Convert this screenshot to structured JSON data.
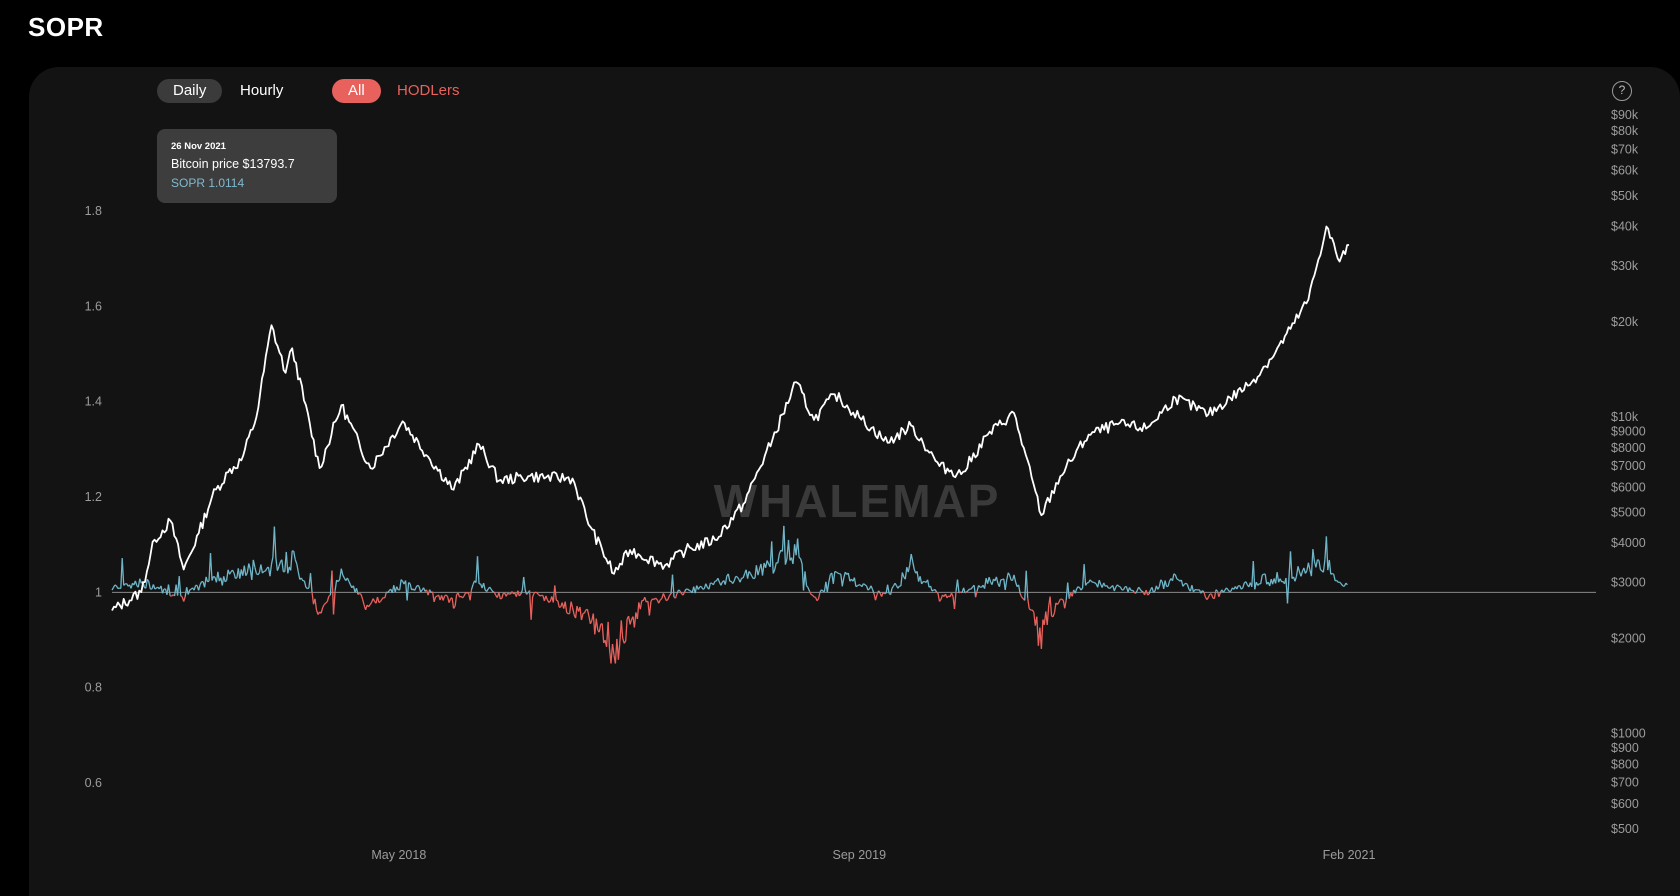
{
  "page": {
    "title": "SOPR"
  },
  "controls": {
    "interval": [
      {
        "label": "Daily",
        "active": true
      },
      {
        "label": "Hourly",
        "active": false
      }
    ],
    "cohort": [
      {
        "label": "All",
        "active": true
      },
      {
        "label": "HODLers",
        "active": false
      }
    ],
    "help_label": "?"
  },
  "tooltip": {
    "date": "26 Nov 2021",
    "price_label": "Bitcoin price $13793.7",
    "sopr_label": "SOPR 1.0114"
  },
  "watermark": "WHALEMAP",
  "colors": {
    "background": "#131313",
    "price_line": "#ffffff",
    "sopr_above": "#6fb6c9",
    "sopr_below": "#e8615c",
    "baseline": "#8a8a8a",
    "accent": "#e8615c"
  },
  "chart_data": {
    "type": "line",
    "title": "SOPR",
    "x_ticks": [
      "May 2018",
      "Sep 2019",
      "Feb 2021"
    ],
    "y_left": {
      "label": "",
      "ticks": [
        "1.8",
        "1.6",
        "1.4",
        "1.2",
        "1",
        "0.8",
        "0.6"
      ],
      "ylim": [
        0.55,
        1.85
      ],
      "baseline": 1
    },
    "y_right": {
      "label": "",
      "scale": "log",
      "ticks": [
        {
          "label": "$90k",
          "value": 90000
        },
        {
          "label": "$80k",
          "value": 80000
        },
        {
          "label": "$70k",
          "value": 70000
        },
        {
          "label": "$60k",
          "value": 60000
        },
        {
          "label": "$50k",
          "value": 50000
        },
        {
          "label": "$40k",
          "value": 40000
        },
        {
          "label": "$30k",
          "value": 30000
        },
        {
          "label": "$20k",
          "value": 20000
        },
        {
          "label": "$10k",
          "value": 10000
        },
        {
          "label": "$9000",
          "value": 9000
        },
        {
          "label": "$8000",
          "value": 8000
        },
        {
          "label": "$7000",
          "value": 7000
        },
        {
          "label": "$6000",
          "value": 6000
        },
        {
          "label": "$5000",
          "value": 5000
        },
        {
          "label": "$4000",
          "value": 4000
        },
        {
          "label": "$3000",
          "value": 3000
        },
        {
          "label": "$2000",
          "value": 2000
        },
        {
          "label": "$1000",
          "value": 1000
        },
        {
          "label": "$900",
          "value": 900
        },
        {
          "label": "$800",
          "value": 800
        },
        {
          "label": "$700",
          "value": 700
        },
        {
          "label": "$600",
          "value": 600
        },
        {
          "label": "$500",
          "value": 500
        }
      ]
    },
    "series": [
      {
        "name": "Bitcoin price",
        "axis": "right",
        "points": [
          [
            "2017-07-01",
            2450
          ],
          [
            "2017-08-01",
            2800
          ],
          [
            "2017-08-15",
            4100
          ],
          [
            "2017-09-01",
            4700
          ],
          [
            "2017-09-15",
            3300
          ],
          [
            "2017-10-01",
            4300
          ],
          [
            "2017-10-15",
            5600
          ],
          [
            "2017-11-01",
            6700
          ],
          [
            "2017-11-15",
            7300
          ],
          [
            "2017-12-01",
            10000
          ],
          [
            "2017-12-17",
            19500
          ],
          [
            "2018-01-01",
            13800
          ],
          [
            "2018-01-08",
            16500
          ],
          [
            "2018-02-06",
            6900
          ],
          [
            "2018-03-01",
            10900
          ],
          [
            "2018-04-01",
            6900
          ],
          [
            "2018-05-05",
            9700
          ],
          [
            "2018-06-01",
            7500
          ],
          [
            "2018-06-28",
            5900
          ],
          [
            "2018-07-25",
            8200
          ],
          [
            "2018-08-15",
            6300
          ],
          [
            "2018-09-15",
            6500
          ],
          [
            "2018-11-01",
            6400
          ],
          [
            "2018-11-20",
            4500
          ],
          [
            "2018-12-15",
            3200
          ],
          [
            "2019-01-01",
            3800
          ],
          [
            "2019-02-07",
            3400
          ],
          [
            "2019-03-01",
            3800
          ],
          [
            "2019-04-01",
            4100
          ],
          [
            "2019-05-01",
            5300
          ],
          [
            "2019-06-01",
            8500
          ],
          [
            "2019-06-26",
            12900
          ],
          [
            "2019-07-15",
            9800
          ],
          [
            "2019-08-06",
            11800
          ],
          [
            "2019-09-01",
            10000
          ],
          [
            "2019-10-01",
            8300
          ],
          [
            "2019-10-26",
            9400
          ],
          [
            "2019-11-25",
            7000
          ],
          [
            "2019-12-18",
            6600
          ],
          [
            "2020-01-15",
            8800
          ],
          [
            "2020-02-12",
            10300
          ],
          [
            "2020-03-12",
            4900
          ],
          [
            "2020-04-01",
            6500
          ],
          [
            "2020-05-01",
            8800
          ],
          [
            "2020-06-01",
            9500
          ],
          [
            "2020-07-01",
            9200
          ],
          [
            "2020-08-01",
            11500
          ],
          [
            "2020-09-05",
            10200
          ],
          [
            "2020-10-21",
            12900
          ],
          [
            "2020-11-15",
            16000
          ],
          [
            "2020-12-01",
            19000
          ],
          [
            "2020-12-20",
            23500
          ],
          [
            "2021-01-08",
            40000
          ],
          [
            "2021-01-22",
            31000
          ],
          [
            "2021-02-01",
            35000
          ]
        ]
      },
      {
        "name": "SOPR",
        "axis": "left",
        "points": [
          [
            "2017-07-01",
            1.01
          ],
          [
            "2017-08-01",
            1.02
          ],
          [
            "2017-09-15",
            0.99
          ],
          [
            "2017-10-15",
            1.03
          ],
          [
            "2017-11-15",
            1.04
          ],
          [
            "2017-12-17",
            1.06
          ],
          [
            "2018-01-08",
            1.07
          ],
          [
            "2018-02-06",
            0.96
          ],
          [
            "2018-03-01",
            1.04
          ],
          [
            "2018-03-30",
            0.97
          ],
          [
            "2018-05-05",
            1.02
          ],
          [
            "2018-06-28",
            0.98
          ],
          [
            "2018-07-25",
            1.02
          ],
          [
            "2018-08-15",
            0.99
          ],
          [
            "2018-09-15",
            1.0
          ],
          [
            "2018-11-20",
            0.95
          ],
          [
            "2018-12-15",
            0.88
          ],
          [
            "2019-01-15",
            0.98
          ],
          [
            "2019-02-07",
            0.99
          ],
          [
            "2019-04-01",
            1.02
          ],
          [
            "2019-05-15",
            1.04
          ],
          [
            "2019-06-26",
            1.09
          ],
          [
            "2019-07-15",
            0.98
          ],
          [
            "2019-08-06",
            1.04
          ],
          [
            "2019-10-01",
            0.99
          ],
          [
            "2019-10-26",
            1.06
          ],
          [
            "2019-11-25",
            0.99
          ],
          [
            "2020-01-15",
            1.02
          ],
          [
            "2020-02-12",
            1.03
          ],
          [
            "2020-03-12",
            0.91
          ],
          [
            "2020-04-01",
            0.98
          ],
          [
            "2020-05-01",
            1.02
          ],
          [
            "2020-07-01",
            1.0
          ],
          [
            "2020-08-01",
            1.03
          ],
          [
            "2020-09-05",
            0.99
          ],
          [
            "2020-10-21",
            1.02
          ],
          [
            "2020-12-01",
            1.03
          ],
          [
            "2021-01-08",
            1.07
          ],
          [
            "2021-01-22",
            1.01
          ],
          [
            "2021-02-01",
            1.02
          ]
        ]
      }
    ],
    "grid": false,
    "legend": "none"
  }
}
